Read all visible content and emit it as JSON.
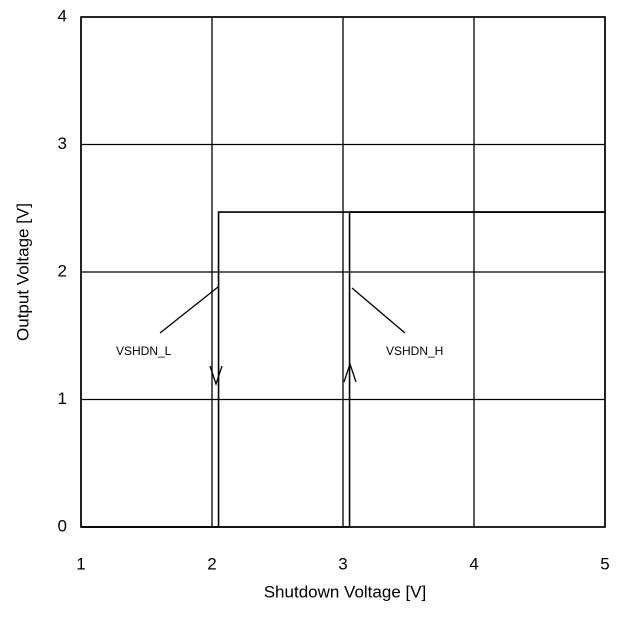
{
  "chart_data": {
    "type": "line",
    "x_label": "Shutdown Voltage [V]",
    "y_label": "Output Voltage [V]",
    "series": [
      {
        "name": "VSHDN_L",
        "color": "#000000",
        "x": [
          5,
          2.05,
          2.05,
          1
        ],
        "values": [
          2.47,
          2.47,
          0,
          0
        ]
      },
      {
        "name": "VSHDN_H",
        "color": "#000000",
        "x": [
          1,
          3.05,
          3.05,
          5
        ],
        "values": [
          0,
          0,
          2.47,
          2.47
        ]
      }
    ],
    "annotations": [
      "VSHDN_L",
      "VSHDN_H"
    ],
    "xlim": [
      1,
      5
    ],
    "xticks": [
      1,
      2,
      3,
      4,
      5
    ],
    "ylim": [
      0,
      4
    ],
    "yticks": [
      0,
      1,
      2,
      3,
      4
    ],
    "grid": true
  }
}
